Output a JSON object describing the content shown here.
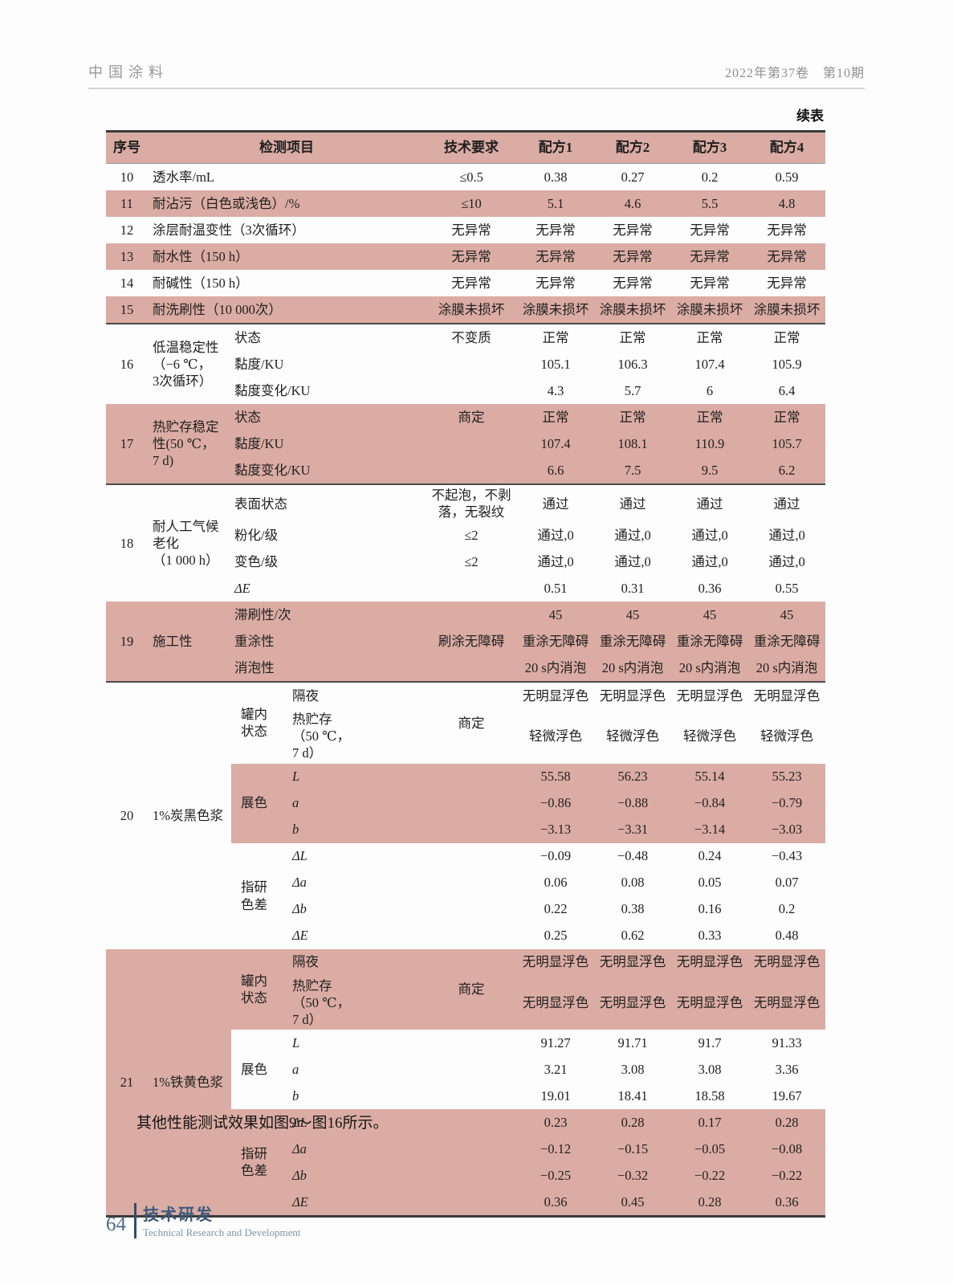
{
  "page_header": {
    "journal": "中国涂料",
    "issue": "2022年第37卷　第10期"
  },
  "table": {
    "continued_label": "续表",
    "columns": [
      "序号",
      "检测项目",
      "技术要求",
      "配方1",
      "配方2",
      "配方3",
      "配方4"
    ],
    "simple_rows": [
      {
        "no": "10",
        "item": "透水率/mL",
        "req": "≤0.5",
        "values": [
          "0.38",
          "0.27",
          "0.2",
          "0.59"
        ],
        "shaded": false
      },
      {
        "no": "11",
        "item": "耐沾污（白色或浅色）/%",
        "req": "≤10",
        "values": [
          "5.1",
          "4.6",
          "5.5",
          "4.8"
        ],
        "shaded": true
      },
      {
        "no": "12",
        "item": "涂层耐温变性（3次循环）",
        "req": "无异常",
        "values": [
          "无异常",
          "无异常",
          "无异常",
          "无异常"
        ],
        "shaded": false
      },
      {
        "no": "13",
        "item": "耐水性（150 h）",
        "req": "无异常",
        "values": [
          "无异常",
          "无异常",
          "无异常",
          "无异常"
        ],
        "shaded": true
      },
      {
        "no": "14",
        "item": "耐碱性（150 h）",
        "req": "无异常",
        "values": [
          "无异常",
          "无异常",
          "无异常",
          "无异常"
        ],
        "shaded": false
      },
      {
        "no": "15",
        "item": "耐洗刷性（10 000次）",
        "req": "涂膜未损坏",
        "values": [
          "涂膜未损坏",
          "涂膜未损坏",
          "涂膜未损坏",
          "涂膜未损坏"
        ],
        "shaded": true
      }
    ],
    "groups": [
      {
        "no": "16",
        "item": "低温稳定性\n（−6 ℃，\n3次循环）",
        "shaded": false,
        "subrows": [
          {
            "label": "状态",
            "req": "不变质",
            "values": [
              "正常",
              "正常",
              "正常",
              "正常"
            ]
          },
          {
            "label": "黏度/KU",
            "req": "",
            "values": [
              "105.1",
              "106.3",
              "107.4",
              "105.9"
            ]
          },
          {
            "label": "黏度变化/KU",
            "req": "",
            "values": [
              "4.3",
              "5.7",
              "6",
              "6.4"
            ]
          }
        ]
      },
      {
        "no": "17",
        "item": "热贮存稳定\n性(50 ℃，\n7 d)",
        "shaded": true,
        "subrows": [
          {
            "label": "状态",
            "req": "商定",
            "values": [
              "正常",
              "正常",
              "正常",
              "正常"
            ]
          },
          {
            "label": "黏度/KU",
            "req": "",
            "values": [
              "107.4",
              "108.1",
              "110.9",
              "105.7"
            ]
          },
          {
            "label": "黏度变化/KU",
            "req": "",
            "values": [
              "6.6",
              "7.5",
              "9.5",
              "6.2"
            ]
          }
        ]
      },
      {
        "no": "18",
        "item": "耐人工气候\n老化\n（1 000 h）",
        "shaded": false,
        "subrows": [
          {
            "label": "表面状态",
            "req": "不起泡，不剥落，无裂纹",
            "values": [
              "通过",
              "通过",
              "通过",
              "通过"
            ]
          },
          {
            "label": "粉化/级",
            "req": "≤2",
            "values": [
              "通过,0",
              "通过,0",
              "通过,0",
              "通过,0"
            ]
          },
          {
            "label": "变色/级",
            "req": "≤2",
            "values": [
              "通过,0",
              "通过,0",
              "通过,0",
              "通过,0"
            ]
          },
          {
            "label": "ΔE",
            "italic": true,
            "req": "",
            "values": [
              "0.51",
              "0.31",
              "0.36",
              "0.55"
            ]
          }
        ]
      },
      {
        "no": "19",
        "item": "施工性",
        "shaded": true,
        "subrows": [
          {
            "label": "滞刷性/次",
            "req": "",
            "values": [
              "45",
              "45",
              "45",
              "45"
            ]
          },
          {
            "label": "重涂性",
            "req": "刷涂无障碍",
            "values": [
              "重涂无障碍",
              "重涂无障碍",
              "重涂无障碍",
              "重涂无障碍"
            ]
          },
          {
            "label": "消泡性",
            "req": "",
            "values": [
              "20 s内消泡",
              "20 s内消泡",
              "20 s内消泡",
              "20 s内消泡"
            ]
          }
        ]
      },
      {
        "no": "20",
        "item": "1%炭黑色浆",
        "shaded": false,
        "blocks": [
          {
            "group": "罐内\n状态",
            "shaded": false,
            "req": "商定",
            "subrows": [
              {
                "label": "隔夜",
                "values": [
                  "无明显浮色",
                  "无明显浮色",
                  "无明显浮色",
                  "无明显浮色"
                ]
              },
              {
                "label": "热贮存\n（50 ℃，\n7 d）",
                "values": [
                  "轻微浮色",
                  "轻微浮色",
                  "轻微浮色",
                  "轻微浮色"
                ]
              }
            ]
          },
          {
            "group": "展色",
            "shaded": true,
            "req": "",
            "subrows": [
              {
                "label": "L",
                "italic": true,
                "values": [
                  "55.58",
                  "56.23",
                  "55.14",
                  "55.23"
                ]
              },
              {
                "label": "a",
                "italic": true,
                "values": [
                  "−0.86",
                  "−0.88",
                  "−0.84",
                  "−0.79"
                ]
              },
              {
                "label": "b",
                "italic": true,
                "values": [
                  "−3.13",
                  "−3.31",
                  "−3.14",
                  "−3.03"
                ]
              }
            ]
          },
          {
            "group": "指研\n色差",
            "shaded": false,
            "req": "",
            "subrows": [
              {
                "label": "ΔL",
                "italic": true,
                "values": [
                  "−0.09",
                  "−0.48",
                  "0.24",
                  "−0.43"
                ]
              },
              {
                "label": "Δa",
                "italic": true,
                "values": [
                  "0.06",
                  "0.08",
                  "0.05",
                  "0.07"
                ]
              },
              {
                "label": "Δb",
                "italic": true,
                "values": [
                  "0.22",
                  "0.38",
                  "0.16",
                  "0.2"
                ]
              },
              {
                "label": "ΔE",
                "italic": true,
                "values": [
                  "0.25",
                  "0.62",
                  "0.33",
                  "0.48"
                ]
              }
            ]
          }
        ]
      },
      {
        "no": "21",
        "item": "1%铁黄色浆",
        "shaded": true,
        "blocks": [
          {
            "group": "罐内\n状态",
            "shaded": true,
            "req": "商定",
            "subrows": [
              {
                "label": "隔夜",
                "values": [
                  "无明显浮色",
                  "无明显浮色",
                  "无明显浮色",
                  "无明显浮色"
                ]
              },
              {
                "label": "热贮存\n（50 ℃，\n7 d）",
                "values": [
                  "无明显浮色",
                  "无明显浮色",
                  "无明显浮色",
                  "无明显浮色"
                ]
              }
            ]
          },
          {
            "group": "展色",
            "shaded": false,
            "req": "",
            "subrows": [
              {
                "label": "L",
                "italic": true,
                "values": [
                  "91.27",
                  "91.71",
                  "91.7",
                  "91.33"
                ]
              },
              {
                "label": "a",
                "italic": true,
                "values": [
                  "3.21",
                  "3.08",
                  "3.08",
                  "3.36"
                ]
              },
              {
                "label": "b",
                "italic": true,
                "values": [
                  "19.01",
                  "18.41",
                  "18.58",
                  "19.67"
                ]
              }
            ]
          },
          {
            "group": "指研\n色差",
            "shaded": true,
            "req": "",
            "subrows": [
              {
                "label": "ΔL",
                "italic": true,
                "values": [
                  "0.23",
                  "0.28",
                  "0.17",
                  "0.28"
                ]
              },
              {
                "label": "Δa",
                "italic": true,
                "values": [
                  "−0.12",
                  "−0.15",
                  "−0.05",
                  "−0.08"
                ]
              },
              {
                "label": "Δb",
                "italic": true,
                "values": [
                  "−0.25",
                  "−0.32",
                  "−0.22",
                  "−0.22"
                ]
              },
              {
                "label": "ΔE",
                "italic": true,
                "values": [
                  "0.36",
                  "0.45",
                  "0.28",
                  "0.36"
                ]
              }
            ]
          }
        ]
      }
    ]
  },
  "body_text": "其他性能测试效果如图9～图16所示。",
  "footer": {
    "page_number": "64",
    "section_cn": "技术研发",
    "section_en": "Technical Research and Development"
  },
  "colors": {
    "table_shade": "#dbaca4",
    "rule_dark": "#3a3a3a",
    "footer_blue": "#3c5a7a",
    "footer_bar": "#2e4d6e",
    "footer_light": "#8095aa",
    "header_gray": "#979797"
  }
}
